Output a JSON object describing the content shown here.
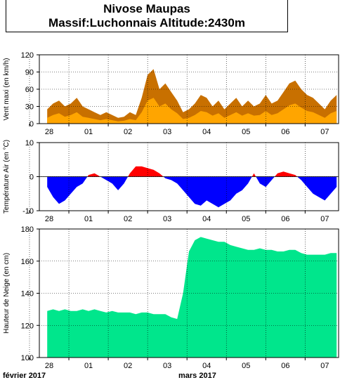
{
  "title": {
    "line1": "Nivose Maupas",
    "line2": "Massif:Luchonnais Altitude:2430m"
  },
  "colors": {
    "wind_gust": "#c87000",
    "wind_mean": "#ffa500",
    "temp_positive": "#ff0000",
    "temp_negative": "#0000ff",
    "snow": "#00e68c"
  },
  "x_ticks": [
    "28",
    "01",
    "02",
    "03",
    "04",
    "05",
    "06",
    "07"
  ],
  "month_labels": [
    "février 2017",
    "mars 2017"
  ],
  "chart_data": [
    {
      "type": "area",
      "ylabel": "Vent maxi (en km/h)",
      "ylim": [
        0,
        120
      ],
      "yticks": [
        0,
        30,
        60,
        90,
        120
      ],
      "x": [
        -0.05,
        0.1,
        0.25,
        0.4,
        0.55,
        0.7,
        0.85,
        1.0,
        1.15,
        1.3,
        1.45,
        1.6,
        1.75,
        1.9,
        2.05,
        2.2,
        2.35,
        2.5,
        2.65,
        2.8,
        2.95,
        3.1,
        3.25,
        3.4,
        3.55,
        3.7,
        3.85,
        4.0,
        4.15,
        4.3,
        4.45,
        4.6,
        4.75,
        4.9,
        5.05,
        5.2,
        5.35,
        5.5,
        5.65,
        5.8,
        5.95,
        6.1,
        6.25,
        6.4,
        6.55,
        6.7,
        6.85,
        7.0,
        7.15,
        7.3
      ],
      "series": [
        {
          "values": [
            25,
            35,
            40,
            30,
            35,
            45,
            30,
            25,
            20,
            15,
            20,
            15,
            10,
            12,
            20,
            15,
            45,
            85,
            95,
            60,
            70,
            55,
            40,
            20,
            25,
            35,
            50,
            45,
            30,
            40,
            25,
            35,
            45,
            30,
            40,
            30,
            35,
            50,
            35,
            40,
            55,
            70,
            75,
            60,
            50,
            45,
            35,
            25,
            40,
            50
          ]
        },
        {
          "values": [
            10,
            15,
            18,
            12,
            15,
            20,
            12,
            10,
            8,
            6,
            8,
            6,
            4,
            5,
            8,
            6,
            20,
            40,
            45,
            30,
            35,
            25,
            18,
            8,
            10,
            15,
            22,
            20,
            14,
            18,
            10,
            15,
            20,
            14,
            18,
            14,
            15,
            22,
            15,
            18,
            25,
            32,
            35,
            28,
            22,
            20,
            15,
            10,
            18,
            22
          ]
        }
      ]
    },
    {
      "type": "area",
      "ylabel": "Température Air (en °C)",
      "ylim": [
        -10,
        10
      ],
      "yticks": [
        -10,
        0,
        10
      ],
      "x": [
        -0.05,
        0.1,
        0.25,
        0.4,
        0.55,
        0.7,
        0.85,
        1.0,
        1.15,
        1.3,
        1.45,
        1.6,
        1.75,
        1.9,
        2.05,
        2.2,
        2.35,
        2.5,
        2.65,
        2.8,
        2.95,
        3.1,
        3.25,
        3.4,
        3.55,
        3.7,
        3.85,
        4.0,
        4.15,
        4.3,
        4.45,
        4.6,
        4.75,
        4.9,
        5.05,
        5.2,
        5.35,
        5.5,
        5.65,
        5.8,
        5.95,
        6.1,
        6.25,
        6.4,
        6.55,
        6.7,
        6.85,
        7.0,
        7.15,
        7.3
      ],
      "values": [
        -3,
        -6,
        -8,
        -7,
        -5,
        -3,
        -2,
        0.5,
        1,
        0,
        -1,
        -2,
        -4,
        -2,
        1,
        3,
        3,
        2.5,
        2,
        1,
        -0.5,
        -1,
        -2,
        -4,
        -6,
        -8,
        -8.5,
        -7,
        -8,
        -9,
        -8,
        -7,
        -5,
        -4,
        -2,
        1,
        -2,
        -3,
        -1,
        1,
        1.5,
        1,
        0.5,
        -1,
        -3,
        -5,
        -6,
        -7,
        -5,
        -3
      ]
    },
    {
      "type": "area",
      "ylabel": "Hauteur de Neige (en cm)",
      "ylim": [
        100,
        180
      ],
      "yticks": [
        100,
        120,
        140,
        160,
        180
      ],
      "x": [
        -0.05,
        0.1,
        0.25,
        0.4,
        0.55,
        0.7,
        0.85,
        1.0,
        1.15,
        1.3,
        1.45,
        1.6,
        1.75,
        1.9,
        2.05,
        2.2,
        2.35,
        2.5,
        2.65,
        2.8,
        2.95,
        3.1,
        3.25,
        3.4,
        3.55,
        3.7,
        3.85,
        4.0,
        4.15,
        4.3,
        4.45,
        4.6,
        4.75,
        4.9,
        5.05,
        5.2,
        5.35,
        5.5,
        5.65,
        5.8,
        5.95,
        6.1,
        6.25,
        6.4,
        6.55,
        6.7,
        6.85,
        7.0,
        7.15,
        7.3
      ],
      "values": [
        129,
        130,
        129,
        130,
        129,
        129,
        130,
        129,
        130,
        129,
        128,
        129,
        128,
        128,
        128,
        127,
        128,
        128,
        127,
        127,
        127,
        125,
        124,
        140,
        166,
        173,
        175,
        174,
        173,
        172,
        172,
        170,
        169,
        168,
        167,
        167,
        168,
        167,
        167,
        166,
        166,
        167,
        167,
        165,
        164,
        164,
        164,
        164,
        165,
        165
      ]
    }
  ]
}
